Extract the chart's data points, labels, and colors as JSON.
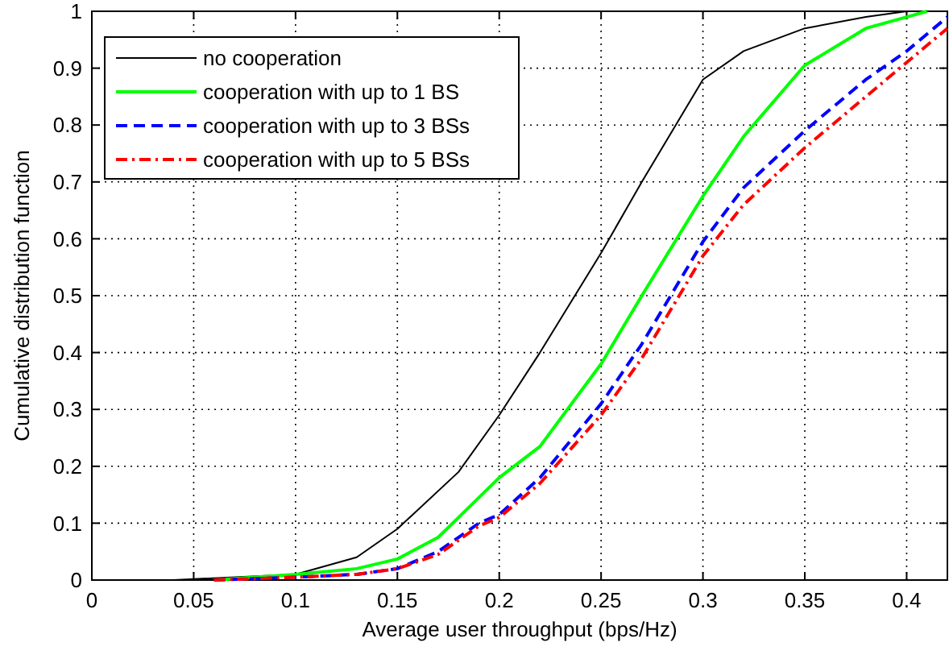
{
  "chart_data": {
    "type": "line",
    "xlabel": "Average user throughput (bps/Hz)",
    "ylabel": "Cumulative distribution function",
    "xlim": [
      0,
      0.42
    ],
    "ylim": [
      0,
      1
    ],
    "xticks": [
      0,
      0.05,
      0.1,
      0.15,
      0.2,
      0.25,
      0.3,
      0.35,
      0.4
    ],
    "yticks": [
      0,
      0.1,
      0.2,
      0.3,
      0.4,
      0.5,
      0.6,
      0.7,
      0.8,
      0.9,
      1
    ],
    "grid": true,
    "legend": "top left",
    "series": [
      {
        "name": "no cooperation",
        "color": "#000000",
        "line_style": "solid",
        "x": [
          0.04,
          0.07,
          0.1,
          0.13,
          0.15,
          0.18,
          0.2,
          0.22,
          0.25,
          0.27,
          0.3,
          0.32,
          0.35,
          0.38,
          0.4
        ],
        "values": [
          0,
          0.005,
          0.01,
          0.04,
          0.09,
          0.19,
          0.29,
          0.4,
          0.575,
          0.7,
          0.88,
          0.93,
          0.97,
          0.99,
          1
        ]
      },
      {
        "name": "cooperation with up to 1 BS",
        "color": "#00ff00",
        "line_style": "solid",
        "x": [
          0.06,
          0.1,
          0.13,
          0.15,
          0.17,
          0.18,
          0.2,
          0.22,
          0.25,
          0.27,
          0.3,
          0.32,
          0.35,
          0.38,
          0.4,
          0.41
        ],
        "values": [
          0,
          0.01,
          0.02,
          0.037,
          0.075,
          0.11,
          0.18,
          0.235,
          0.38,
          0.5,
          0.675,
          0.78,
          0.905,
          0.97,
          0.99,
          1
        ]
      },
      {
        "name": "cooperation with up to 3 BSs",
        "color": "#0000ff",
        "line_style": "dashed",
        "x": [
          0.06,
          0.1,
          0.13,
          0.15,
          0.17,
          0.18,
          0.19,
          0.2,
          0.22,
          0.25,
          0.27,
          0.3,
          0.32,
          0.35,
          0.38,
          0.4,
          0.42
        ],
        "values": [
          0,
          0.005,
          0.01,
          0.02,
          0.05,
          0.075,
          0.1,
          0.115,
          0.18,
          0.31,
          0.415,
          0.595,
          0.69,
          0.79,
          0.88,
          0.93,
          0.99
        ]
      },
      {
        "name": "cooperation with up to 5 BSs",
        "color": "#ff0000",
        "line_style": "dashdot",
        "x": [
          0.06,
          0.1,
          0.13,
          0.15,
          0.17,
          0.18,
          0.19,
          0.2,
          0.22,
          0.25,
          0.27,
          0.3,
          0.32,
          0.35,
          0.38,
          0.4,
          0.42
        ],
        "values": [
          0,
          0.005,
          0.01,
          0.02,
          0.045,
          0.07,
          0.095,
          0.11,
          0.17,
          0.29,
          0.39,
          0.57,
          0.66,
          0.76,
          0.85,
          0.91,
          0.97
        ]
      }
    ]
  }
}
